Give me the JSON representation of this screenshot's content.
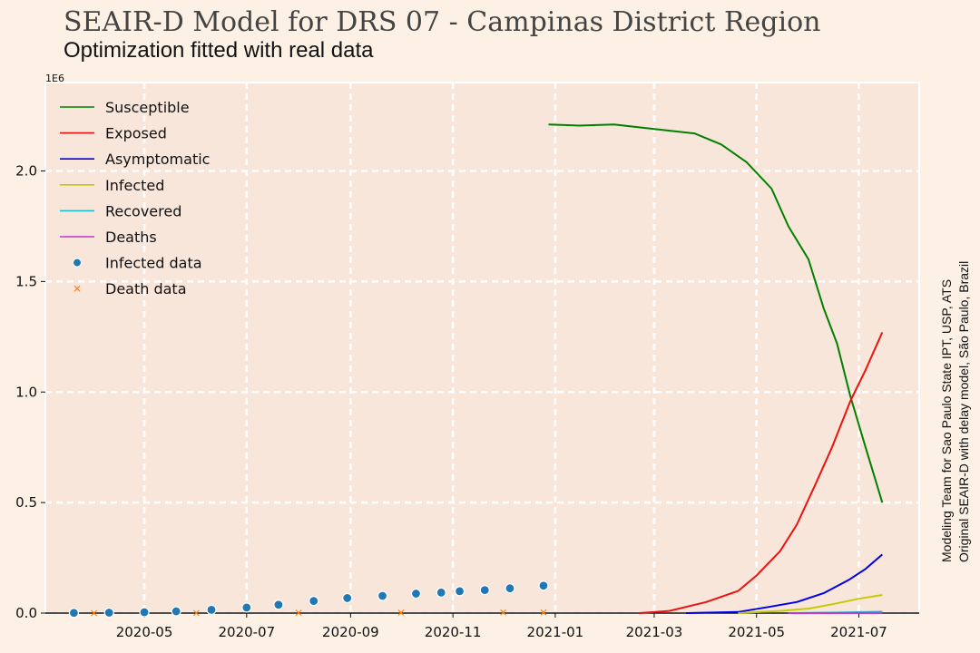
{
  "header": {
    "title": "SEAIR-D Model for DRS 07 - Campinas District Region",
    "subtitle": "Optimization fitted with real data"
  },
  "side_note": {
    "line1": "Modeling Team for Sao Paulo State IPT, USP, ATS",
    "line2": "Original SEAIR-D with delay model, São Paulo, Brazil"
  },
  "chart_data": {
    "type": "line",
    "title": "SEAIR-D Model for DRS 07 - Campinas District Region",
    "subtitle": "Optimization fitted with real data",
    "xlabel": "",
    "ylabel": "",
    "y_scale_label": "1E6",
    "x_axis_type": "date",
    "xlim": [
      "2020-03-03",
      "2021-08-06"
    ],
    "ylim": [
      0,
      2.4
    ],
    "y_ticks": [
      0.0,
      0.5,
      1.0,
      1.5,
      2.0
    ],
    "y_tick_labels": [
      "0.0",
      "0.5",
      "1.0",
      "1.5",
      "2.0"
    ],
    "x_ticks": [
      "2020-05-01",
      "2020-07-01",
      "2020-09-01",
      "2020-11-01",
      "2021-01-01",
      "2021-03-01",
      "2021-05-01",
      "2021-07-01"
    ],
    "x_tick_labels": [
      "2020-05",
      "2020-07",
      "2020-09",
      "2020-11",
      "2021-01",
      "2021-03",
      "2021-05",
      "2021-07"
    ],
    "grid": true,
    "legend_position": "top-left",
    "series": [
      {
        "name": "Susceptible",
        "kind": "line",
        "color": "#008000",
        "points": [
          [
            "2020-12-28",
            2.21
          ],
          [
            "2021-01-15",
            2.205
          ],
          [
            "2021-02-05",
            2.21
          ],
          [
            "2021-03-01",
            2.19
          ],
          [
            "2021-03-25",
            2.17
          ],
          [
            "2021-04-10",
            2.12
          ],
          [
            "2021-04-25",
            2.04
          ],
          [
            "2021-05-10",
            1.92
          ],
          [
            "2021-05-20",
            1.75
          ],
          [
            "2021-06-01",
            1.6
          ],
          [
            "2021-06-10",
            1.38
          ],
          [
            "2021-06-18",
            1.22
          ],
          [
            "2021-06-26",
            0.98
          ],
          [
            "2021-07-05",
            0.75
          ],
          [
            "2021-07-15",
            0.5
          ]
        ]
      },
      {
        "name": "Exposed",
        "kind": "line",
        "color": "#ee1111",
        "points": [
          [
            "2021-02-20",
            0.0
          ],
          [
            "2021-03-10",
            0.01
          ],
          [
            "2021-04-01",
            0.05
          ],
          [
            "2021-04-20",
            0.1
          ],
          [
            "2021-05-01",
            0.17
          ],
          [
            "2021-05-15",
            0.28
          ],
          [
            "2021-05-25",
            0.4
          ],
          [
            "2021-06-05",
            0.58
          ],
          [
            "2021-06-15",
            0.75
          ],
          [
            "2021-06-26",
            0.96
          ],
          [
            "2021-07-05",
            1.1
          ],
          [
            "2021-07-15",
            1.27
          ]
        ]
      },
      {
        "name": "Asymptomatic",
        "kind": "line",
        "color": "#0000ee",
        "points": [
          [
            "2021-03-20",
            0.0
          ],
          [
            "2021-04-20",
            0.005
          ],
          [
            "2021-05-10",
            0.03
          ],
          [
            "2021-05-25",
            0.05
          ],
          [
            "2021-06-10",
            0.09
          ],
          [
            "2021-06-25",
            0.15
          ],
          [
            "2021-07-05",
            0.2
          ],
          [
            "2021-07-15",
            0.265
          ]
        ]
      },
      {
        "name": "Infected",
        "kind": "line",
        "color": "#c8c800",
        "points": [
          [
            "2021-04-20",
            0.0
          ],
          [
            "2021-05-15",
            0.01
          ],
          [
            "2021-06-01",
            0.02
          ],
          [
            "2021-06-15",
            0.04
          ],
          [
            "2021-07-01",
            0.065
          ],
          [
            "2021-07-15",
            0.082
          ]
        ]
      },
      {
        "name": "Recovered",
        "kind": "line",
        "color": "#17becf",
        "points": [
          [
            "2021-05-20",
            0.0
          ],
          [
            "2021-06-15",
            0.002
          ],
          [
            "2021-07-15",
            0.006
          ]
        ]
      },
      {
        "name": "Deaths",
        "kind": "line",
        "color": "#cc33cc",
        "points": [
          [
            "2021-05-20",
            0.0
          ],
          [
            "2021-07-15",
            0.001
          ]
        ]
      },
      {
        "name": "Infected data",
        "kind": "scatter",
        "marker": "circle",
        "color": "#1f77b4",
        "points": [
          [
            "2020-03-20",
            0.001
          ],
          [
            "2020-04-10",
            0.002
          ],
          [
            "2020-05-01",
            0.004
          ],
          [
            "2020-05-20",
            0.008
          ],
          [
            "2020-06-10",
            0.015
          ],
          [
            "2020-07-01",
            0.025
          ],
          [
            "2020-07-20",
            0.038
          ],
          [
            "2020-08-10",
            0.055
          ],
          [
            "2020-08-30",
            0.068
          ],
          [
            "2020-09-20",
            0.078
          ],
          [
            "2020-10-10",
            0.088
          ],
          [
            "2020-10-25",
            0.093
          ],
          [
            "2020-11-05",
            0.099
          ],
          [
            "2020-11-20",
            0.104
          ],
          [
            "2020-12-05",
            0.112
          ],
          [
            "2020-12-25",
            0.124
          ]
        ]
      },
      {
        "name": "Death data",
        "kind": "scatter",
        "marker": "x",
        "color": "#ff7f0e",
        "points": [
          [
            "2020-04-01",
            0.0
          ],
          [
            "2020-06-01",
            0.0005
          ],
          [
            "2020-08-01",
            0.0015
          ],
          [
            "2020-10-01",
            0.0025
          ],
          [
            "2020-12-01",
            0.003
          ],
          [
            "2020-12-25",
            0.0035
          ]
        ]
      }
    ]
  }
}
